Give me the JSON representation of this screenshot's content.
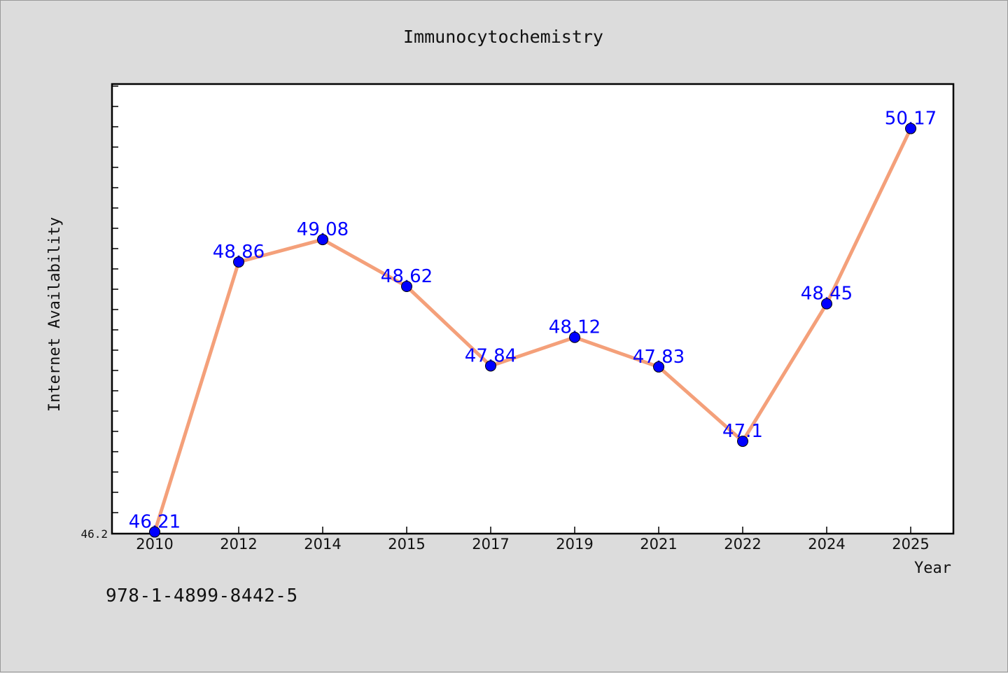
{
  "chart_data": {
    "type": "line",
    "title": "Immunocytochemistry",
    "xlabel": "Year",
    "ylabel": "Internet Availability",
    "categories": [
      "2010",
      "2012",
      "2014",
      "2015",
      "2017",
      "2019",
      "2021",
      "2022",
      "2024",
      "2025"
    ],
    "series": [
      {
        "values": [
          46.21,
          48.86,
          49.08,
          48.62,
          47.84,
          48.12,
          47.83,
          47.1,
          48.45,
          50.17
        ],
        "labels": [
          "46.21",
          "48.86",
          "49.08",
          "48.62",
          "47.84",
          "48.12",
          "47.83",
          "47.1",
          "48.45",
          "50.17"
        ]
      }
    ],
    "ylim": [
      46.2,
      50.6
    ],
    "y_tick_label": "46.2",
    "grid": false,
    "line_color": "#f4a07a",
    "marker_color": "#0000ff",
    "label_color": "#0000ff",
    "plot_background": "#ffffff",
    "figure_background": "#dcdcdc"
  },
  "footer": {
    "isbn": "978-1-4899-8442-5"
  }
}
